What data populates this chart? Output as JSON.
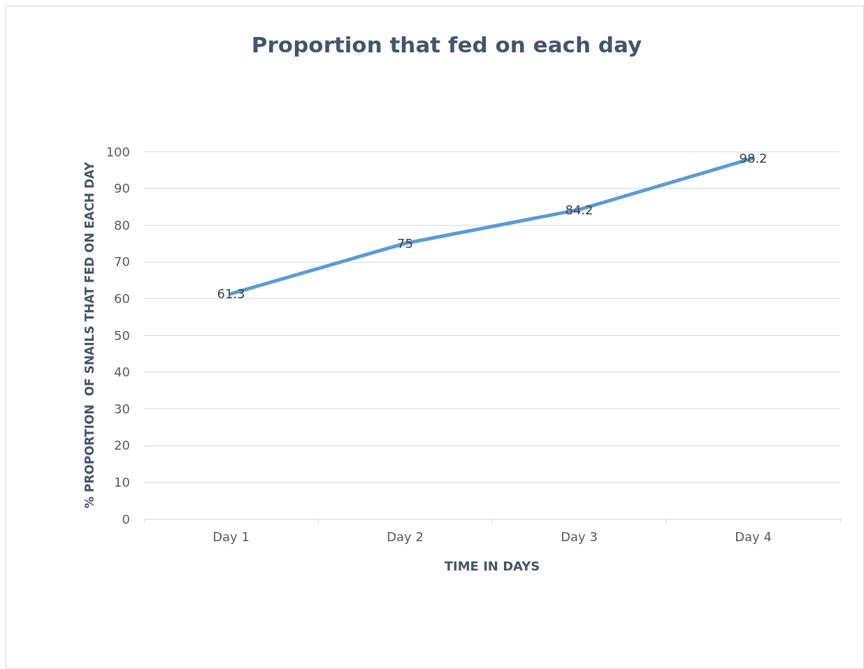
{
  "chart_data": {
    "type": "line",
    "title": "Proportion that fed on each day",
    "xlabel": "TIME IN DAYS",
    "ylabel": "% PROPORTION  OF SNAILS THAT FED ON EACH DAY",
    "categories": [
      "Day 1",
      "Day 2",
      "Day 3",
      "Day 4"
    ],
    "series": [
      {
        "color": "#5b9bd5",
        "values": [
          61.3,
          75,
          84.2,
          98.2
        ]
      }
    ],
    "ylim": [
      0,
      100
    ],
    "yticks": [
      0,
      10,
      20,
      30,
      40,
      50,
      60,
      70,
      80,
      90,
      100
    ],
    "grid": "y",
    "data_labels": true,
    "marker": "none",
    "line_style": "solid"
  }
}
